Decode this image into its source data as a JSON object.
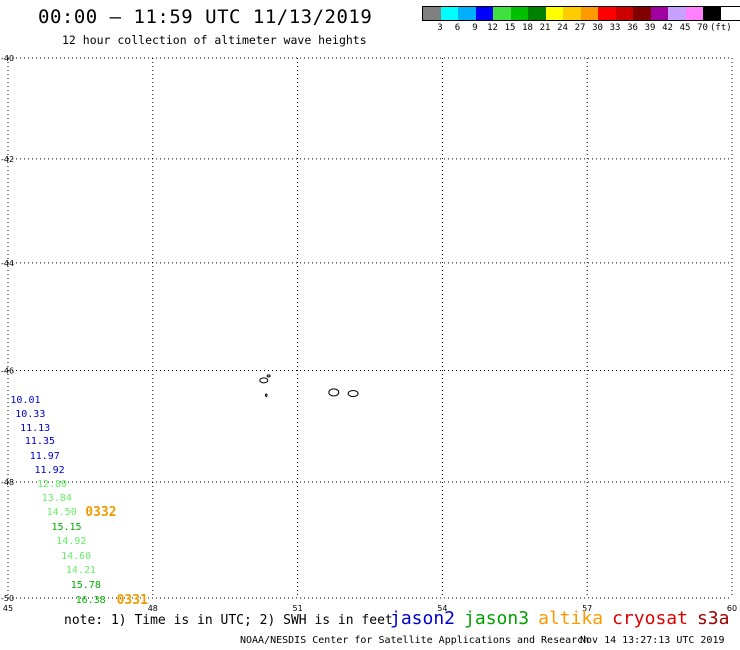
{
  "title": "00:00 — 11:59 UTC 11/13/2019",
  "subtitle": "12 hour collection of altimeter wave heights",
  "colorbar": {
    "colors": [
      "#808080",
      "#00ffff",
      "#00b0ff",
      "#0000ff",
      "#40e040",
      "#00c000",
      "#008000",
      "#ffff00",
      "#ffcc00",
      "#ff9900",
      "#ff0000",
      "#cc0000",
      "#800000",
      "#a000a0",
      "#c8a0ff",
      "#ff80ff",
      "#000000"
    ],
    "labels": [
      "3",
      "6",
      "9",
      "12",
      "15",
      "18",
      "21",
      "24",
      "27",
      "30",
      "33",
      "36",
      "39",
      "42",
      "45",
      "70"
    ],
    "unit": "(ft)"
  },
  "map": {
    "lat_ticks": [
      -40,
      -42,
      -44,
      -46,
      -48,
      -50
    ],
    "lon_ticks": [
      45,
      48,
      51,
      54,
      57,
      60
    ],
    "lat_range": [
      -50,
      -40
    ],
    "lon_range": [
      45,
      60
    ],
    "grid": "dotted"
  },
  "swh_readings": [
    {
      "value": "10.01",
      "color": "#0000cc",
      "lon": 45.05,
      "lat": -46.55
    },
    {
      "value": "10.33",
      "color": "#0000cc",
      "lon": 45.15,
      "lat": -46.8
    },
    {
      "value": "11.13",
      "color": "#0000cc",
      "lon": 45.25,
      "lat": -47.05
    },
    {
      "value": "11.35",
      "color": "#0000cc",
      "lon": 45.35,
      "lat": -47.3
    },
    {
      "value": "11.97",
      "color": "#0000cc",
      "lon": 45.45,
      "lat": -47.55
    },
    {
      "value": "11.92",
      "color": "#0000cc",
      "lon": 45.55,
      "lat": -47.8
    },
    {
      "value": "12.80",
      "color": "#66ee66",
      "lon": 45.6,
      "lat": -48.05
    },
    {
      "value": "13.84",
      "color": "#66ee66",
      "lon": 45.7,
      "lat": -48.3
    },
    {
      "value": "14.50",
      "color": "#66ee66",
      "lon": 45.8,
      "lat": -48.55
    },
    {
      "value": "15.15",
      "color": "#00b000",
      "lon": 45.9,
      "lat": -48.8
    },
    {
      "value": "14.92",
      "color": "#66ee66",
      "lon": 46.0,
      "lat": -49.05
    },
    {
      "value": "14.60",
      "color": "#66ee66",
      "lon": 46.1,
      "lat": -49.3
    },
    {
      "value": "14.21",
      "color": "#66ee66",
      "lon": 46.2,
      "lat": -49.55
    },
    {
      "value": "15.78",
      "color": "#00b000",
      "lon": 46.3,
      "lat": -49.8
    },
    {
      "value": "16.38",
      "color": "#00b000",
      "lon": 46.4,
      "lat": -50.05
    }
  ],
  "pass_times": [
    {
      "value": "0332",
      "color": "#ee9900",
      "lon": 46.6,
      "lat": -48.55
    },
    {
      "value": "0331",
      "color": "#ee9900",
      "lon": 47.25,
      "lat": -50.05
    }
  ],
  "islands": [
    {
      "name": "",
      "lon": 50.3,
      "lat": -46.18
    },
    {
      "name": "",
      "lon": 50.4,
      "lat": -46.1
    },
    {
      "name": "",
      "lon": 50.35,
      "lat": -46.45
    },
    {
      "name": "",
      "lon": 51.75,
      "lat": -46.4
    },
    {
      "name": "",
      "lon": 52.15,
      "lat": -46.42
    }
  ],
  "footer": {
    "note": "note: 1) Time is in UTC; 2) SWH is in feet",
    "credit": "NOAA/NESDIS Center for Satellite Applications and Research",
    "timestamp": "Nov 14 13:27:13 UTC 2019"
  },
  "legend": [
    {
      "label": "jason2",
      "color": "#0000cc"
    },
    {
      "label": "jason3",
      "color": "#00a000"
    },
    {
      "label": "altika",
      "color": "#ff9900"
    },
    {
      "label": "cryosat",
      "color": "#dd0000"
    },
    {
      "label": "s3a",
      "color": "#990000"
    }
  ]
}
